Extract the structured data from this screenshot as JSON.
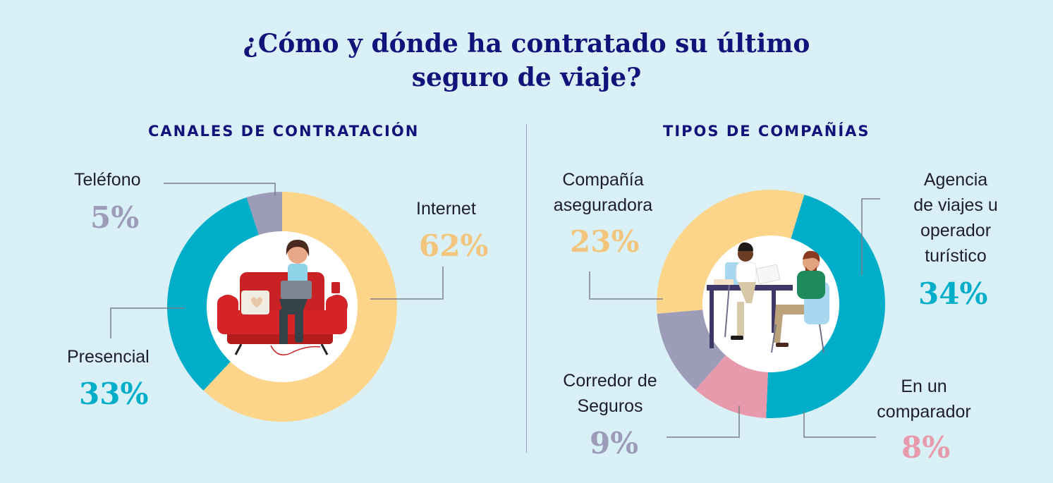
{
  "title": {
    "line1": "¿Cómo y dónde ha contratado su último",
    "line2": "seguro de viaje?"
  },
  "colors": {
    "background": "#d9f1f6",
    "navy": "#10137a",
    "yellow": "#fcd58a",
    "teal": "#00aec9",
    "gray": "#9c9bb8",
    "pink": "#e79aab",
    "inner": "#ffffff"
  },
  "chart_data": [
    {
      "type": "pie",
      "title": "CANALES DE CONTRATACIÓN",
      "slices": [
        {
          "label": "Internet",
          "value": 62,
          "display": "62%",
          "color": "#fcd58a"
        },
        {
          "label": "Presencial",
          "value": 33,
          "display": "33%",
          "color": "#00aec9"
        },
        {
          "label": "Teléfono",
          "value": 5,
          "display": "5%",
          "color": "#9c9bb8"
        }
      ]
    },
    {
      "type": "pie",
      "title": "TIPOS DE COMPAÑÍAS",
      "slices": [
        {
          "label": "Agencia de viajes u operador turístico",
          "lines": [
            "Agencia",
            "de viajes u",
            "operador",
            "turístico"
          ],
          "value": 34,
          "display": "34%",
          "color": "#00aec9"
        },
        {
          "label": "En un comparador",
          "lines": [
            "En un",
            "comparador"
          ],
          "value": 8,
          "display": "8%",
          "color": "#e79aab"
        },
        {
          "label": "Corredor de Seguros",
          "lines": [
            "Corredor de",
            "Seguros"
          ],
          "value": 9,
          "display": "9%",
          "color": "#9c9bb8"
        },
        {
          "label": "Compañía aseguradora",
          "lines": [
            "Compañía",
            "aseguradora"
          ],
          "value": 23,
          "display": "23%",
          "color": "#fcd58a"
        }
      ]
    }
  ]
}
